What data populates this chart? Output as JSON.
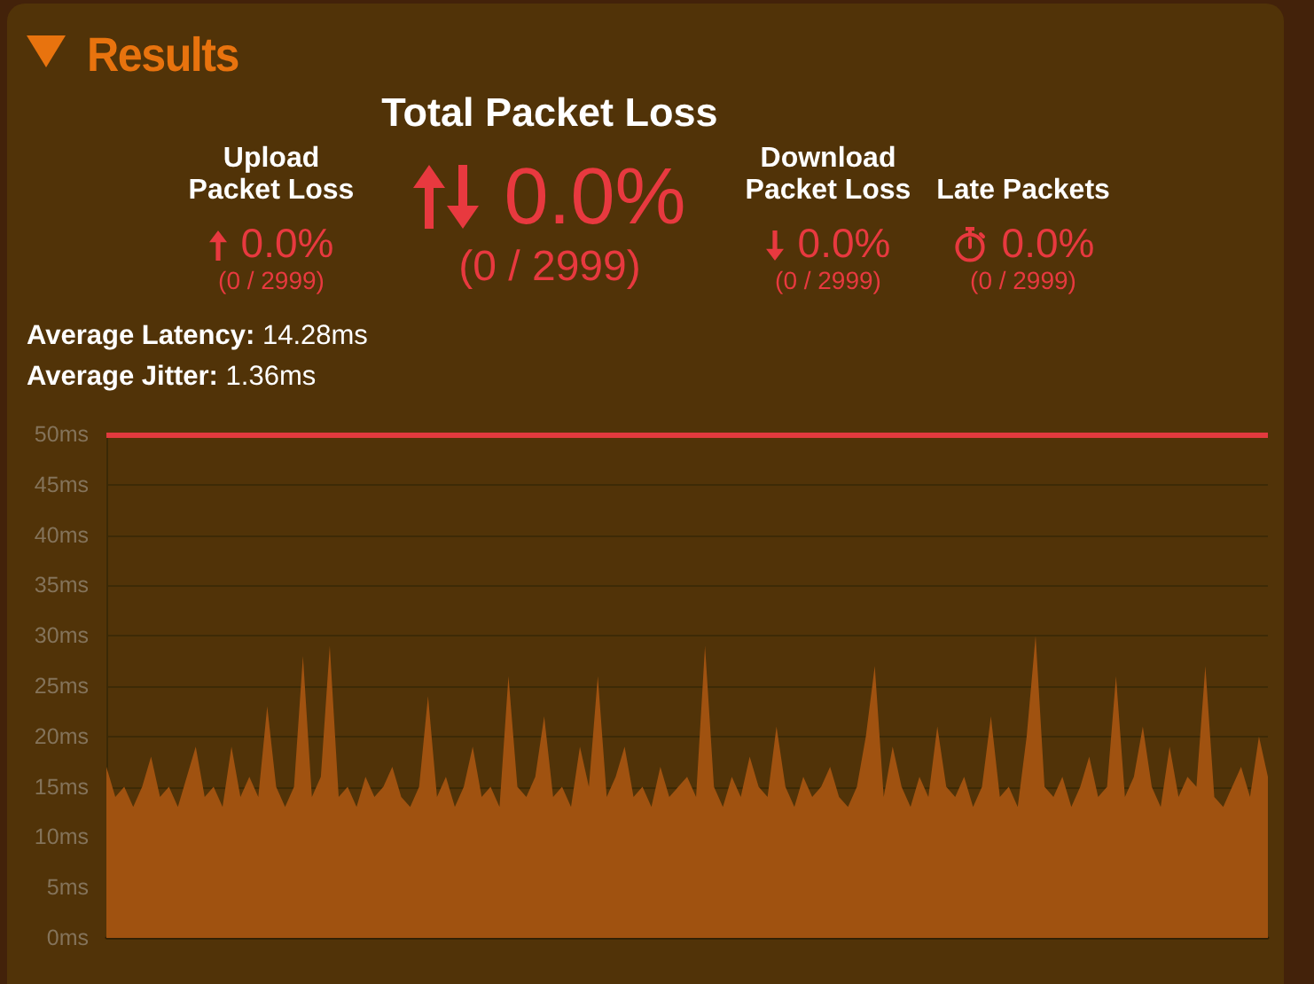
{
  "chart_data": [
    {
      "type": "other",
      "title": "Results",
      "annotations": [
        "Total Packet Loss",
        "0.0%",
        "(0 / 2999)",
        "Upload Packet Loss",
        "0.0%",
        "(0 / 2999)",
        "Download Packet Loss",
        "0.0%",
        "(0 / 2999)",
        "Late Packets",
        "0.0%",
        "(0 / 2999)",
        "Average Latency: 14.28ms",
        "Average Jitter: 1.36ms"
      ]
    },
    {
      "type": "area",
      "categories": [
        null,
        null,
        null,
        null,
        null,
        null,
        null,
        null,
        null,
        null,
        null,
        null,
        null,
        null,
        null,
        null,
        null,
        null,
        null,
        null,
        null,
        null,
        null,
        null,
        null,
        null,
        null,
        null,
        null,
        null,
        null,
        null,
        null,
        null,
        null,
        null,
        null,
        null,
        null,
        null,
        null,
        null,
        null,
        null,
        null,
        null,
        null,
        null,
        null,
        null,
        null,
        null,
        null,
        null,
        null,
        null,
        null,
        null,
        null,
        null,
        null,
        null,
        null,
        null,
        null,
        null,
        null,
        null,
        null,
        null,
        null,
        null,
        null,
        null,
        null,
        null,
        null,
        null,
        null,
        null,
        null,
        null,
        null,
        null,
        null,
        null,
        null,
        null,
        null,
        null,
        null,
        null,
        null,
        null,
        null,
        null,
        null,
        null,
        null,
        null,
        null,
        null,
        null,
        null,
        null,
        null,
        null,
        null,
        null,
        null,
        null,
        null,
        null,
        null,
        null,
        null,
        null,
        null,
        null,
        null,
        null,
        null,
        null,
        null,
        null,
        null,
        null,
        null,
        null,
        null,
        null
      ],
      "values": [
        17,
        14,
        15,
        13,
        15,
        18,
        14,
        15,
        13,
        16,
        19,
        14,
        15,
        13,
        19,
        14,
        16,
        14,
        23,
        15,
        13,
        15,
        28,
        14,
        16,
        29,
        14,
        15,
        13,
        16,
        14,
        15,
        17,
        14,
        13,
        15,
        24,
        14,
        16,
        13,
        15,
        19,
        14,
        15,
        13,
        26,
        15,
        14,
        16,
        22,
        14,
        15,
        13,
        19,
        15,
        26,
        14,
        16,
        19,
        14,
        15,
        13,
        17,
        14,
        15,
        16,
        14,
        29,
        15,
        13,
        16,
        14,
        18,
        15,
        14,
        21,
        15,
        13,
        16,
        14,
        15,
        17,
        14,
        13,
        15,
        20,
        27,
        14,
        19,
        15,
        13,
        16,
        14,
        21,
        15,
        14,
        16,
        13,
        15,
        22,
        14,
        15,
        13,
        20,
        30,
        15,
        14,
        16,
        13,
        15,
        18,
        14,
        15,
        26,
        14,
        16,
        21,
        15,
        13,
        19,
        14,
        16,
        15,
        27,
        14,
        13,
        15,
        17,
        14,
        20,
        16
      ],
      "color": "#a05210",
      "ylim": [
        0,
        50
      ],
      "yticks": [
        {
          "value": 0,
          "label": "0ms"
        },
        {
          "value": 5,
          "label": "5ms"
        },
        {
          "value": 10,
          "label": "10ms"
        },
        {
          "value": 15,
          "label": "15ms"
        },
        {
          "value": 20,
          "label": "20ms"
        },
        {
          "value": 25,
          "label": "25ms"
        },
        {
          "value": 30,
          "label": "30ms"
        },
        {
          "value": 35,
          "label": "35ms"
        },
        {
          "value": 40,
          "label": "40ms"
        },
        {
          "value": 45,
          "label": "45ms"
        },
        {
          "value": 50,
          "label": "50ms"
        }
      ],
      "grid": "y",
      "tick_labels": "y",
      "ref_lines": [
        {
          "axis": "y",
          "value": 50,
          "color": "#e23a3e"
        }
      ]
    }
  ]
}
